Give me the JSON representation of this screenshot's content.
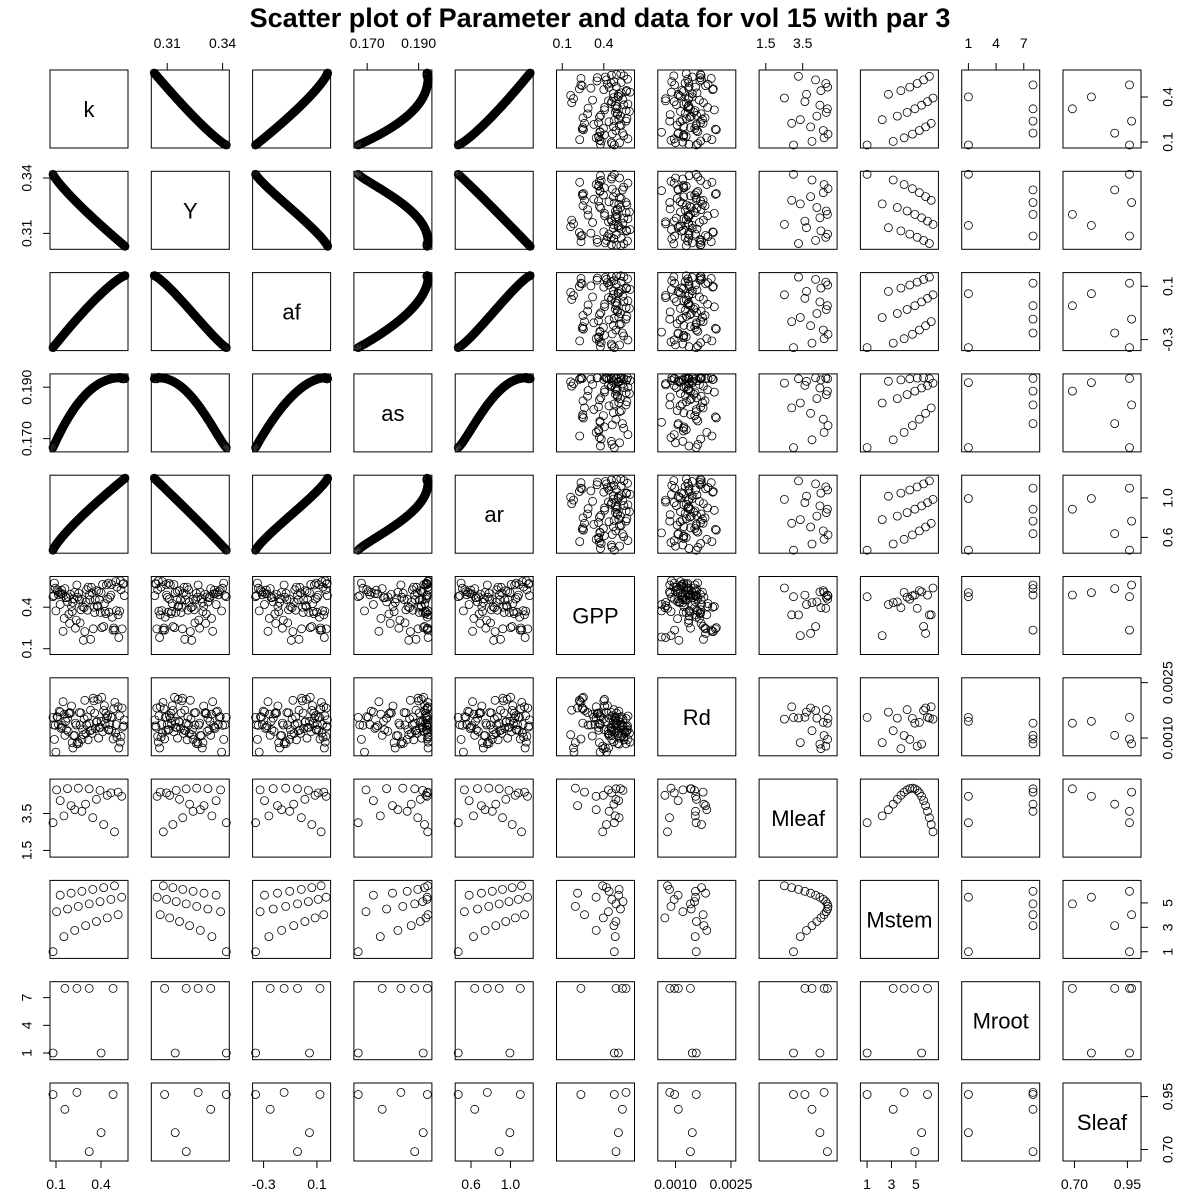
{
  "title": "Scatter plot of Parameter and data for vol 15 with par 3",
  "chart_data": {
    "type": "scatter",
    "layout": "scatterplot-matrix",
    "title": "Scatter plot of Parameter and data for vol 15 with par 3",
    "variables": [
      {
        "name": "k",
        "range": [
          0.08,
          0.56
        ],
        "ticks": [
          "0.1",
          "0.4"
        ],
        "tick_values": [
          0.1,
          0.4
        ]
      },
      {
        "name": "Y",
        "range": [
          0.303,
          0.342
        ],
        "ticks": [
          "0.31",
          "0.34"
        ],
        "tick_values": [
          0.31,
          0.34
        ]
      },
      {
        "name": "af",
        "range": [
          -0.36,
          0.18
        ],
        "ticks": [
          "-0.3",
          "0.1"
        ],
        "tick_values": [
          -0.3,
          0.1
        ]
      },
      {
        "name": "as",
        "range": [
          0.166,
          0.194
        ],
        "ticks": [
          "0.170",
          "0.190"
        ],
        "tick_values": [
          0.17,
          0.19
        ]
      },
      {
        "name": "ar",
        "range": [
          0.47,
          1.2
        ],
        "ticks": [
          "0.6",
          "1.0"
        ],
        "tick_values": [
          0.6,
          1.0
        ]
      },
      {
        "name": "GPP",
        "range": [
          0.08,
          0.6
        ],
        "ticks": [
          "0.1",
          "0.4"
        ],
        "tick_values": [
          0.1,
          0.4
        ]
      },
      {
        "name": "Rd",
        "range": [
          0.0006,
          0.00255
        ],
        "ticks": [
          "0.0010",
          "0.0025"
        ],
        "tick_values": [
          0.001,
          0.0025
        ]
      },
      {
        "name": "Mleaf",
        "range": [
          1.3,
          5.2
        ],
        "ticks": [
          "1.5",
          "3.5"
        ],
        "tick_values": [
          1.5,
          3.5
        ]
      },
      {
        "name": "Mstem",
        "range": [
          0.7,
          6.6
        ],
        "ticks": [
          "1",
          "3",
          "5"
        ],
        "tick_values": [
          1,
          3,
          5
        ]
      },
      {
        "name": "Mroot",
        "range": [
          0.6,
          8.4
        ],
        "ticks": [
          "1",
          "4",
          "7"
        ],
        "tick_values": [
          1,
          4,
          7
        ]
      },
      {
        "name": "Sleaf",
        "range": [
          0.66,
          1.0
        ],
        "ticks": [
          "0.70",
          "0.95"
        ],
        "tick_values": [
          0.7,
          0.95
        ]
      }
    ],
    "axis_positions": {
      "top": [
        1,
        3,
        5,
        7,
        9
      ],
      "bottom": [
        0,
        2,
        4,
        6,
        8,
        10
      ],
      "left": [
        1,
        3,
        5,
        7,
        9
      ],
      "right": [
        0,
        2,
        4,
        6,
        8,
        10
      ]
    },
    "point_groups": {
      "parameters": {
        "variables": [
          0,
          1,
          2,
          3,
          4
        ],
        "samples": 200
      },
      "gpp_rd": {
        "variables": [
          5,
          6
        ],
        "samples": 110
      },
      "mleaf_mstem": {
        "variables": [
          7,
          8
        ],
        "samples": 20
      },
      "mroot_sleaf": {
        "variables": [
          9,
          10
        ],
        "samples": 6
      }
    },
    "xlabel": "",
    "ylabel": "",
    "grid": false,
    "marker": "open-circle"
  }
}
